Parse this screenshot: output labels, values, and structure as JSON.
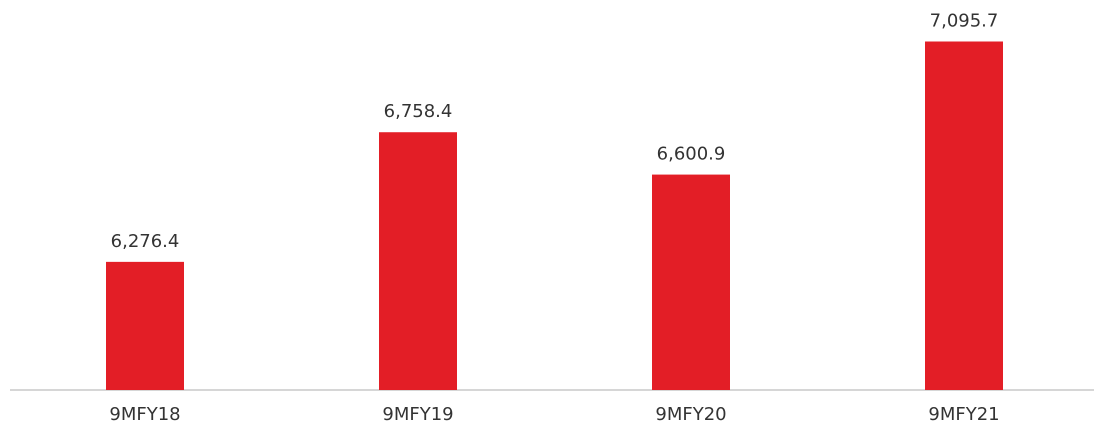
{
  "chart_data": {
    "type": "bar",
    "categories": [
      "9MFY18",
      "9MFY19",
      "9MFY20",
      "9MFY21"
    ],
    "values": [
      6276.4,
      6758.4,
      6600.9,
      7095.7
    ],
    "value_labels": [
      "6,276.4",
      "6,758.4",
      "6,600.9",
      "7,095.7"
    ],
    "color": "#e31e26",
    "ylim": [
      5800,
      7250
    ]
  }
}
